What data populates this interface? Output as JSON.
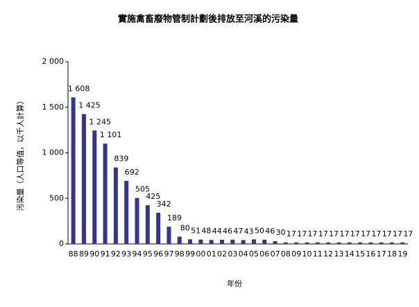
{
  "chart_data": {
    "type": "bar",
    "title": "實施禽畜廢物管制計劃後排放至河溪的污染量",
    "y_label": "污染量（人口等值，以千人計算）",
    "x_label": "年份",
    "categories": [
      "88",
      "89",
      "90",
      "91",
      "92",
      "93",
      "94",
      "95",
      "96",
      "97",
      "98",
      "99",
      "00",
      "01",
      "02",
      "03",
      "04",
      "05",
      "06",
      "07",
      "08",
      "09",
      "10",
      "11",
      "12",
      "13",
      "14",
      "15",
      "16",
      "17",
      "18",
      "19"
    ],
    "values": [
      1608,
      1425,
      1245,
      1101,
      839,
      692,
      505,
      425,
      342,
      189,
      80,
      51,
      48,
      44,
      46,
      47,
      43,
      50,
      46,
      30,
      17,
      17,
      17,
      17,
      17,
      17,
      17,
      17,
      17,
      17,
      17,
      17
    ],
    "value_labels": [
      "1 608",
      "1 425",
      "1 245",
      "1 101",
      "839",
      "692",
      "505",
      "425",
      "342",
      "189",
      "80",
      "51",
      "48",
      "44",
      "46",
      "47",
      "43",
      "50",
      "46",
      "30",
      "17",
      "17",
      "17",
      "17",
      "17",
      "17",
      "17",
      "17",
      "17",
      "17",
      "17",
      "17"
    ],
    "color": "#333399",
    "ylim": [
      0,
      2000
    ],
    "yticks": [
      0,
      500,
      {
        "value": 1000,
        "label": "1 000"
      },
      {
        "value": 1500,
        "label": "1 500"
      },
      {
        "value": 2000,
        "label": "2 000"
      }
    ],
    "grid": false
  }
}
